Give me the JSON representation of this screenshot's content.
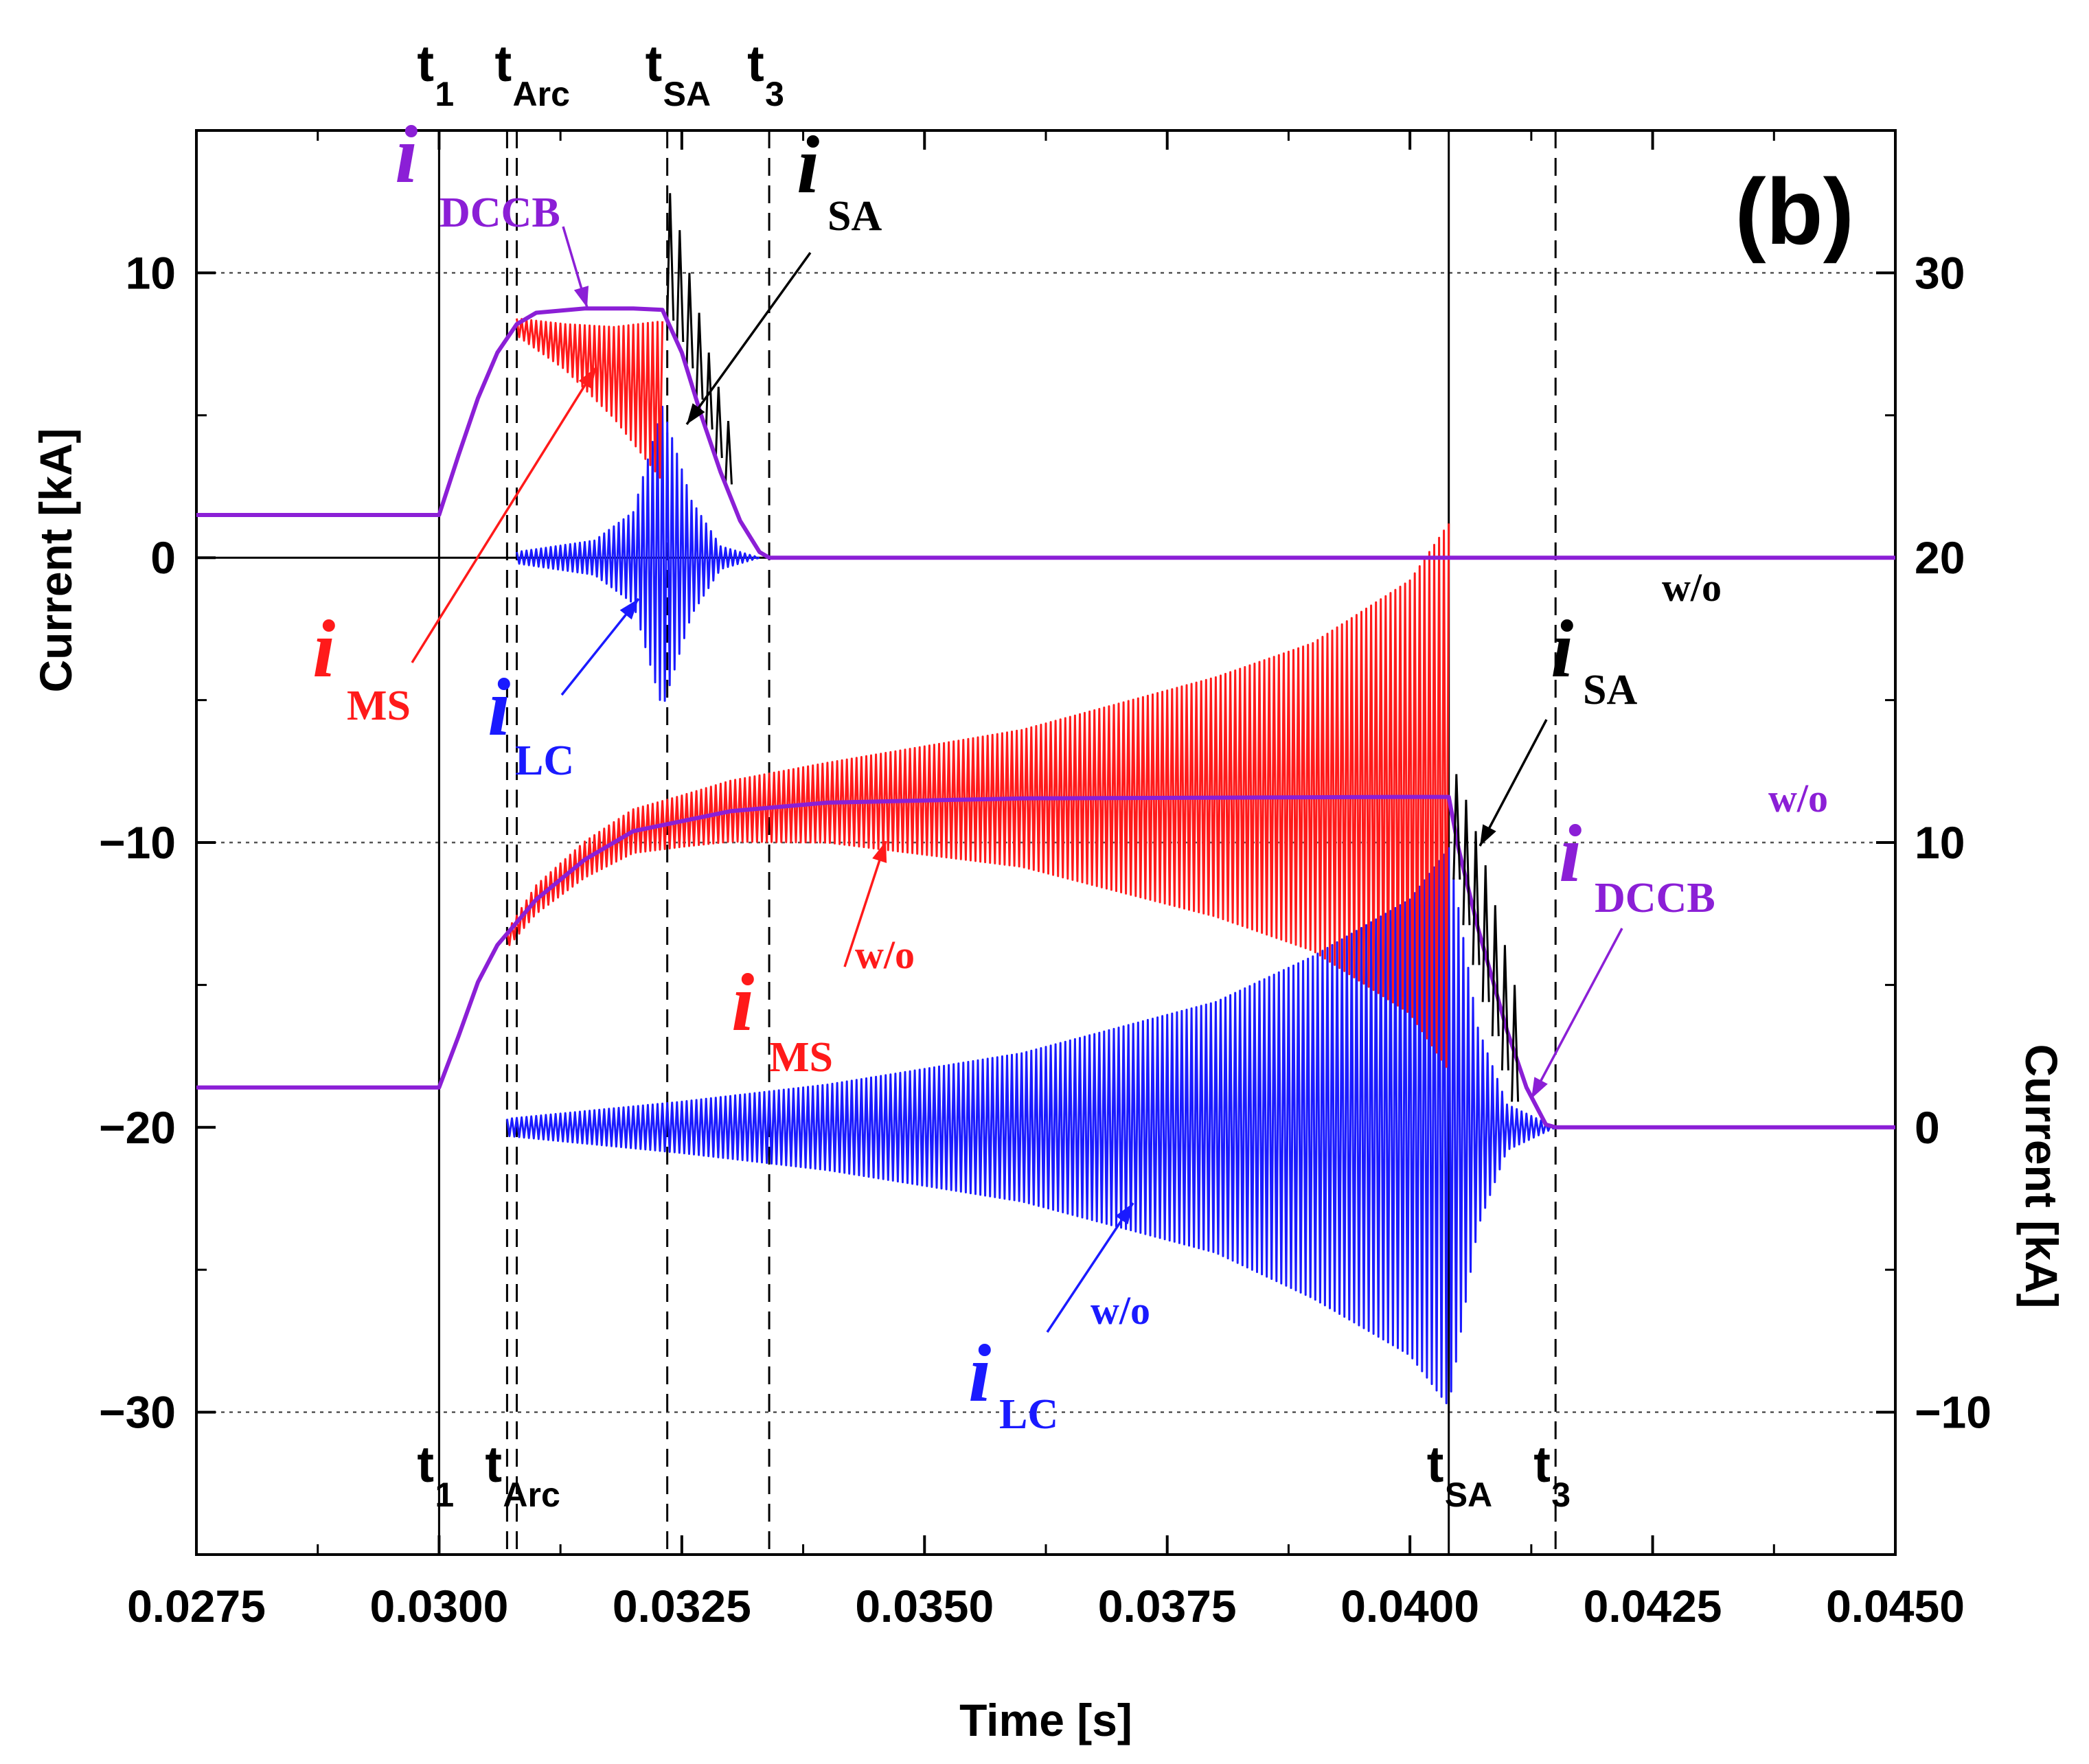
{
  "chart_data": {
    "type": "line",
    "panel_label": "(b)",
    "xlabel": "Time [s]",
    "ylabel_left": "Current [kA]",
    "ylabel_right": "Current [kA]",
    "xlim": [
      0.0275,
      0.045
    ],
    "ylim_left": [
      -35,
      15
    ],
    "ylim_right": [
      -15,
      35
    ],
    "x_tick_labels": [
      "0.0275",
      "0.0300",
      "0.0325",
      "0.0350",
      "0.0375",
      "0.0400",
      "0.0425",
      "0.0450"
    ],
    "x_ticks": [
      0.0275,
      0.03,
      0.0325,
      0.035,
      0.0375,
      0.04,
      0.0425,
      0.045
    ],
    "y_left_ticks": [
      10,
      0,
      -10,
      -20,
      -30
    ],
    "y_left_tick_labels": [
      "10",
      "0",
      "−10",
      "−20",
      "−30"
    ],
    "y_right_ticks": [
      30,
      20,
      10,
      0,
      -10
    ],
    "y_right_tick_labels": [
      "30",
      "20",
      "10",
      "0",
      "−10"
    ],
    "gridlines_left_y": [
      10,
      -10,
      -30
    ],
    "colors": {
      "i_DCCB": "#8b1fd6",
      "i_MS": "#ff1a1a",
      "i_LC": "#1a1aff",
      "i_SA": "#000000",
      "grid": "#555555"
    },
    "series": [
      {
        "name": "i_DCCB (with)",
        "axis": "left",
        "points": [
          [
            0.0275,
            1.5
          ],
          [
            0.03,
            1.5
          ],
          [
            0.0302,
            3.6
          ],
          [
            0.0304,
            5.6
          ],
          [
            0.0306,
            7.2
          ],
          [
            0.0308,
            8.2
          ],
          [
            0.031,
            8.6
          ],
          [
            0.0315,
            8.75
          ],
          [
            0.032,
            8.75
          ],
          [
            0.0323,
            8.7
          ],
          [
            0.0325,
            7.2
          ],
          [
            0.0327,
            5.0
          ],
          [
            0.0329,
            3.0
          ],
          [
            0.0331,
            1.3
          ],
          [
            0.0333,
            0.2
          ],
          [
            0.0334,
            0.0
          ],
          [
            0.045,
            0.0
          ]
        ]
      },
      {
        "name": "i_MS (with)",
        "axis": "left",
        "envelope_center": [
          [
            0.0308,
            8.1
          ],
          [
            0.0313,
            7.4
          ],
          [
            0.0318,
            6.5
          ],
          [
            0.0323,
            5.5
          ]
        ],
        "envelope_amplitude": [
          [
            0.0308,
            0.3
          ],
          [
            0.0313,
            0.8
          ],
          [
            0.0318,
            1.6
          ],
          [
            0.0323,
            2.8
          ]
        ]
      },
      {
        "name": "i_LC (with)",
        "axis": "left",
        "envelope_center": [
          [
            0.0308,
            0.0
          ],
          [
            0.0323,
            0.0
          ],
          [
            0.0329,
            0.0
          ],
          [
            0.0333,
            0.0
          ]
        ],
        "envelope_amplitude": [
          [
            0.0308,
            0.2
          ],
          [
            0.0316,
            0.6
          ],
          [
            0.032,
            1.6
          ],
          [
            0.0323,
            5.3
          ],
          [
            0.0326,
            2.0
          ],
          [
            0.0329,
            0.4
          ],
          [
            0.0333,
            0.0
          ]
        ]
      },
      {
        "name": "i_SA (with)",
        "axis": "left",
        "spikes": [
          [
            0.03235,
            12.8
          ],
          [
            0.03245,
            11.5
          ],
          [
            0.03255,
            10.0
          ],
          [
            0.03265,
            8.6
          ],
          [
            0.03275,
            7.2
          ],
          [
            0.03285,
            6.0
          ],
          [
            0.03295,
            4.8
          ]
        ]
      },
      {
        "name": "i_DCCB w/o",
        "axis": "left",
        "points": [
          [
            0.0275,
            -18.6
          ],
          [
            0.03,
            -18.6
          ],
          [
            0.0302,
            -16.8
          ],
          [
            0.0304,
            -14.9
          ],
          [
            0.0306,
            -13.6
          ],
          [
            0.031,
            -12.0
          ],
          [
            0.0315,
            -10.6
          ],
          [
            0.032,
            -9.6
          ],
          [
            0.033,
            -8.9
          ],
          [
            0.034,
            -8.6
          ],
          [
            0.036,
            -8.45
          ],
          [
            0.04,
            -8.4
          ],
          [
            0.0404,
            -8.4
          ],
          [
            0.0405,
            -10.2
          ],
          [
            0.0407,
            -13.0
          ],
          [
            0.041,
            -16.6
          ],
          [
            0.0412,
            -18.6
          ],
          [
            0.0414,
            -19.9
          ],
          [
            0.0415,
            -20.0
          ],
          [
            0.045,
            -20.0
          ]
        ]
      },
      {
        "name": "i_MS w/o",
        "axis": "left",
        "envelope_center": [
          [
            0.0307,
            -13.4
          ],
          [
            0.031,
            -12.0
          ],
          [
            0.0315,
            -10.6
          ],
          [
            0.032,
            -9.6
          ],
          [
            0.033,
            -8.9
          ],
          [
            0.034,
            -8.6
          ],
          [
            0.036,
            -8.45
          ],
          [
            0.038,
            -8.4
          ],
          [
            0.04,
            -8.4
          ],
          [
            0.0404,
            -8.4
          ]
        ],
        "envelope_amplitude": [
          [
            0.0307,
            0.3
          ],
          [
            0.031,
            0.5
          ],
          [
            0.0325,
            0.9
          ],
          [
            0.034,
            1.4
          ],
          [
            0.036,
            2.4
          ],
          [
            0.038,
            4.2
          ],
          [
            0.039,
            5.4
          ],
          [
            0.04,
            7.6
          ],
          [
            0.0404,
            9.6
          ]
        ]
      },
      {
        "name": "i_LC w/o",
        "axis": "left",
        "envelope_center": [
          [
            0.0307,
            -20.0
          ],
          [
            0.0404,
            -20.0
          ],
          [
            0.041,
            -20.0
          ],
          [
            0.0415,
            -20.0
          ]
        ],
        "envelope_amplitude": [
          [
            0.0307,
            0.3
          ],
          [
            0.031,
            0.4
          ],
          [
            0.0325,
            0.9
          ],
          [
            0.034,
            1.5
          ],
          [
            0.036,
            2.6
          ],
          [
            0.038,
            4.4
          ],
          [
            0.039,
            6.0
          ],
          [
            0.04,
            8.0
          ],
          [
            0.0404,
            9.8
          ],
          [
            0.0407,
            3.5
          ],
          [
            0.041,
            0.8
          ],
          [
            0.0415,
            0.0
          ]
        ]
      },
      {
        "name": "i_SA w/o",
        "axis": "left",
        "spikes": [
          [
            0.04045,
            -7.6
          ],
          [
            0.04055,
            -8.5
          ],
          [
            0.04065,
            -9.6
          ],
          [
            0.04075,
            -10.8
          ],
          [
            0.04085,
            -12.2
          ],
          [
            0.04095,
            -13.6
          ],
          [
            0.04105,
            -15.0
          ]
        ]
      }
    ],
    "vertical_markers": [
      {
        "x": 0.03,
        "style": "solid",
        "label": "t",
        "sub": "1",
        "position": "top"
      },
      {
        "x": 0.0308,
        "style": "dashed",
        "label": "t",
        "sub": "Arc",
        "position": "top"
      },
      {
        "x": 0.03235,
        "style": "dashed",
        "label": "t",
        "sub": "SA",
        "position": "top"
      },
      {
        "x": 0.0334,
        "style": "dashed",
        "label": "t",
        "sub": "3",
        "position": "top"
      },
      {
        "x": 0.03,
        "style": "solid",
        "label": "t",
        "sub": "1",
        "position": "bottom"
      },
      {
        "x": 0.0307,
        "style": "dashed",
        "label": "t",
        "sub": "Arc",
        "position": "bottom"
      },
      {
        "x": 0.0404,
        "style": "solid",
        "label": "t",
        "sub": "SA",
        "position": "bottom"
      },
      {
        "x": 0.0415,
        "style": "dashed",
        "label": "t",
        "sub": "3",
        "position": "bottom"
      }
    ],
    "annotations": [
      {
        "main": "i",
        "sub": "DCCB",
        "sup": "",
        "color": "#8b1fd6"
      },
      {
        "main": "i",
        "sub": "SA",
        "sup": "",
        "color": "#000000"
      },
      {
        "main": "i",
        "sub": "MS",
        "sup": "",
        "color": "#ff1a1a"
      },
      {
        "main": "i",
        "sub": "LC",
        "sup": "",
        "color": "#1a1aff"
      },
      {
        "main": "i",
        "sub": "SA",
        "sup": "w/o",
        "color": "#000000"
      },
      {
        "main": "i",
        "sub": "DCCB",
        "sup": "w/o",
        "color": "#8b1fd6"
      },
      {
        "main": "i",
        "sub": "MS",
        "sup": "w/o",
        "color": "#ff1a1a"
      },
      {
        "main": "i",
        "sub": "LC",
        "sup": "w/o",
        "color": "#1a1aff"
      }
    ]
  }
}
